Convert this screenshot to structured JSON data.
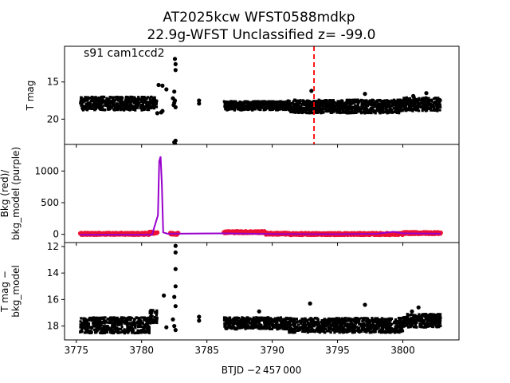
{
  "figure": {
    "title_line1": "AT2025kcw  WFST0588mdkp",
    "title_line2": "22.9g-WFST Unclassified z= -99.0",
    "xlabel": "BTJD −2 457 000",
    "colors": {
      "points": "#000000",
      "bkg": "#ee1133",
      "bkg_model": "#9900cc",
      "marker_line": "#ff0000"
    }
  },
  "chart_data": [
    {
      "type": "scatter",
      "panel": "top",
      "ylabel": "T mag",
      "annotation": "s91 cam1ccd2",
      "xlim": [
        3774.1,
        3804.3
      ],
      "ylim": [
        23.4,
        10.2
      ],
      "y_inverted": true,
      "yticks": [
        15,
        20
      ],
      "vline_x": 3793.2,
      "series": [
        {
          "band_segments": [
            {
              "x0": 3775.3,
              "x1": 3780.6,
              "center": 17.9,
              "half": 0.9
            },
            {
              "x0": 3780.6,
              "x1": 3781.2,
              "center": 17.8,
              "half": 0.8
            },
            {
              "x0": 3786.3,
              "x1": 3791.2,
              "center": 18.2,
              "half": 0.6
            },
            {
              "x0": 3791.2,
              "x1": 3800.0,
              "center": 18.3,
              "half": 0.9
            },
            {
              "x0": 3800.0,
              "x1": 3802.9,
              "center": 18.0,
              "half": 0.9
            }
          ],
          "points": [
            {
              "x": 3781.3,
              "y": 15.4
            },
            {
              "x": 3781.6,
              "y": 15.5
            },
            {
              "x": 3781.9,
              "y": 16.0
            },
            {
              "x": 3782.4,
              "y": 17.2
            },
            {
              "x": 3782.5,
              "y": 16.3
            },
            {
              "x": 3782.6,
              "y": 13.4
            },
            {
              "x": 3782.6,
              "y": 12.6
            },
            {
              "x": 3782.55,
              "y": 11.9
            },
            {
              "x": 3782.5,
              "y": 17.8
            },
            {
              "x": 3782.6,
              "y": 18.4
            },
            {
              "x": 3782.45,
              "y": 18.1
            },
            {
              "x": 3782.55,
              "y": 17.5
            },
            {
              "x": 3782.5,
              "y": 23.1
            },
            {
              "x": 3782.55,
              "y": 23.3
            },
            {
              "x": 3782.6,
              "y": 22.9
            },
            {
              "x": 3781.5,
              "y": 19.1
            },
            {
              "x": 3781.6,
              "y": 18.9
            },
            {
              "x": 3784.4,
              "y": 17.5
            },
            {
              "x": 3784.4,
              "y": 17.9
            },
            {
              "x": 3793.0,
              "y": 16.2
            },
            {
              "x": 3797.1,
              "y": 16.6
            },
            {
              "x": 3800.8,
              "y": 16.9
            },
            {
              "x": 3801.8,
              "y": 16.5
            },
            {
              "x": 3781.2,
              "y": 19.2
            }
          ]
        }
      ]
    },
    {
      "type": "line",
      "panel": "middle",
      "ylabel": "Bkg (red)/\nbkg_model (purple)",
      "xlim": [
        3774.1,
        3804.3
      ],
      "ylim": [
        -130,
        1420
      ],
      "yticks": [
        0,
        500,
        1000
      ],
      "series": [
        {
          "name": "Bkg (red)",
          "segments": [
            {
              "x0": 3775.3,
              "x1": 3780.6,
              "level": 8
            },
            {
              "x0": 3780.6,
              "x1": 3781.2,
              "level": 25
            },
            {
              "x0": 3782.2,
              "x1": 3782.8,
              "level": 10
            },
            {
              "x0": 3786.3,
              "x1": 3789.5,
              "level": 35
            },
            {
              "x0": 3789.5,
              "x1": 3791.2,
              "level": 10
            },
            {
              "x0": 3791.2,
              "x1": 3800.0,
              "level": 5
            },
            {
              "x0": 3800.0,
              "x1": 3802.9,
              "level": 20
            }
          ]
        },
        {
          "name": "bkg_model (purple)",
          "x": [
            3775.3,
            3780.8,
            3781.25,
            3781.35,
            3781.45,
            3781.55,
            3781.65,
            3782.0,
            3782.6,
            3786.3,
            3790.0,
            3795.0,
            3798.0,
            3799.3,
            3800.0,
            3802.9
          ],
          "y": [
            -5,
            -5,
            300,
            1150,
            1230,
            800,
            30,
            8,
            10,
            15,
            5,
            2,
            8,
            40,
            15,
            10
          ]
        }
      ]
    },
    {
      "type": "scatter",
      "panel": "bottom",
      "ylabel": "T mag −\nbkg_model",
      "xlim": [
        3774.1,
        3804.3
      ],
      "ylim": [
        19.05,
        11.7
      ],
      "y_inverted": true,
      "yticks": [
        12,
        14,
        16,
        18
      ],
      "xticks": [
        3775,
        3780,
        3785,
        3790,
        3795,
        3800
      ],
      "series": [
        {
          "band_segments": [
            {
              "x0": 3775.3,
              "x1": 3780.6,
              "center": 17.95,
              "half": 0.6
            },
            {
              "x0": 3780.6,
              "x1": 3781.2,
              "center": 17.3,
              "half": 0.5
            },
            {
              "x0": 3786.3,
              "x1": 3791.2,
              "center": 17.8,
              "half": 0.45
            },
            {
              "x0": 3791.2,
              "x1": 3800.0,
              "center": 17.95,
              "half": 0.55
            },
            {
              "x0": 3800.0,
              "x1": 3802.9,
              "center": 17.6,
              "half": 0.5
            }
          ],
          "points": [
            {
              "x": 3782.6,
              "y": 11.95
            },
            {
              "x": 3782.6,
              "y": 12.45
            },
            {
              "x": 3782.6,
              "y": 13.7
            },
            {
              "x": 3782.6,
              "y": 15.0
            },
            {
              "x": 3782.5,
              "y": 15.8
            },
            {
              "x": 3781.7,
              "y": 15.7
            },
            {
              "x": 3782.6,
              "y": 16.5
            },
            {
              "x": 3782.4,
              "y": 17.5
            },
            {
              "x": 3782.5,
              "y": 18.0
            },
            {
              "x": 3782.6,
              "y": 18.3
            },
            {
              "x": 3784.4,
              "y": 17.3
            },
            {
              "x": 3784.4,
              "y": 17.6
            },
            {
              "x": 3792.9,
              "y": 16.3
            },
            {
              "x": 3797.1,
              "y": 16.4
            },
            {
              "x": 3801.2,
              "y": 16.6
            },
            {
              "x": 3800.7,
              "y": 16.9
            },
            {
              "x": 3781.9,
              "y": 18.1
            },
            {
              "x": 3789.0,
              "y": 16.9
            }
          ]
        }
      ]
    }
  ]
}
